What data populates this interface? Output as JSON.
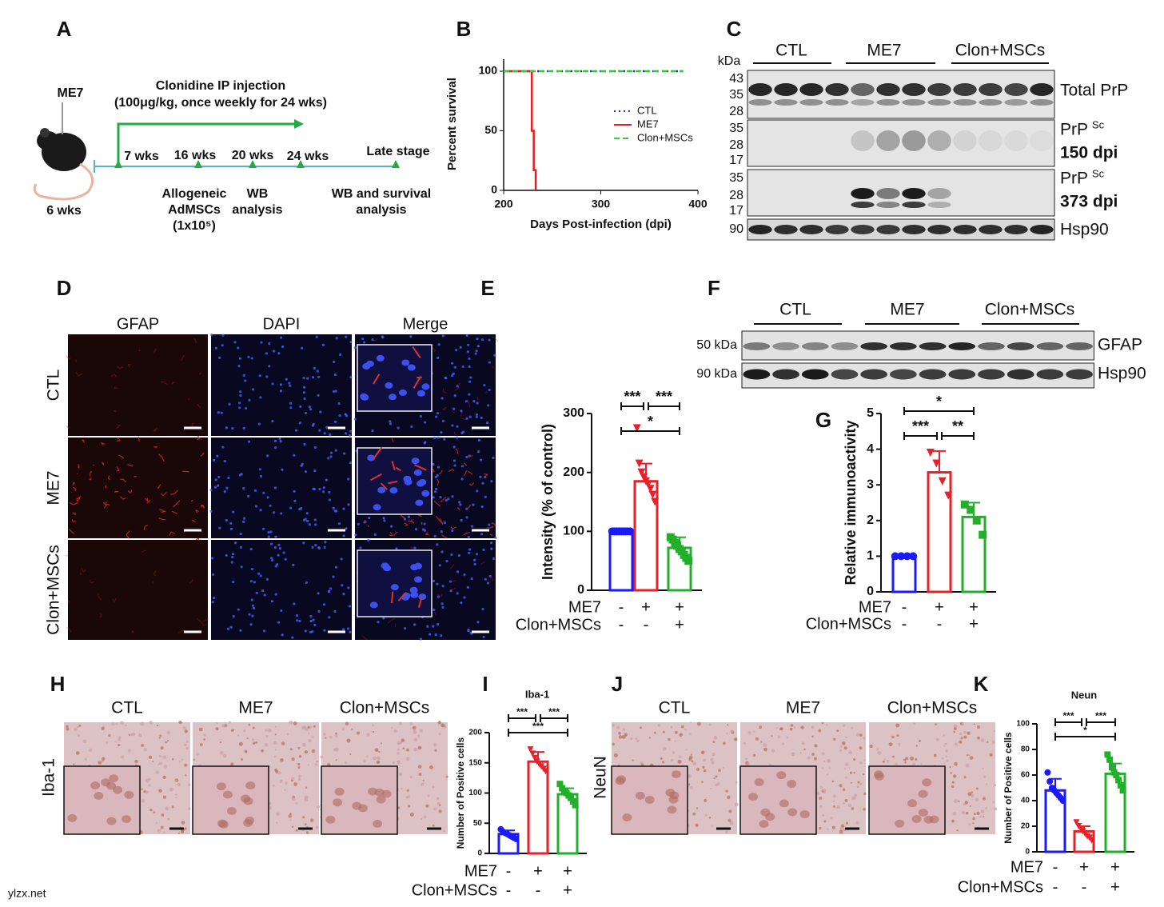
{
  "panels": [
    "A",
    "B",
    "C",
    "D",
    "E",
    "F",
    "G",
    "H",
    "I",
    "J",
    "K"
  ],
  "timeline": {
    "mouse_label": "ME7",
    "start": "6 wks",
    "treatment": "Clonidine IP injection",
    "dose": "(100μg/kg, once weekly for 24 wks)",
    "timepoints": [
      "7 wks",
      "16 wks",
      "20 wks",
      "24 wks",
      "Late stage"
    ],
    "events": [
      [
        "Allogeneic",
        "AdMSCs",
        "(1x10⁵)"
      ],
      [
        "WB",
        "analysis"
      ],
      [
        "WB and survival",
        "analysis"
      ]
    ]
  },
  "blot_c": {
    "unit": "kDa",
    "groups": [
      "CTL",
      "ME7",
      "Clon+MSCs"
    ],
    "rows": [
      {
        "markers": [
          "43",
          "35",
          "28"
        ],
        "label": "Total PrP"
      },
      {
        "markers": [
          "35",
          "28",
          "17"
        ],
        "label": "PrP",
        "label_sup": "Sc",
        "note": "150 dpi"
      },
      {
        "markers": [
          "35",
          "28",
          "17"
        ],
        "label": "PrP",
        "label_sup": "Sc",
        "note": "373 dpi"
      },
      {
        "markers": [
          "90"
        ],
        "label": "Hsp90"
      }
    ]
  },
  "blot_f": {
    "groups": [
      "CTL",
      "ME7",
      "Clon+MSCs"
    ],
    "rows": [
      {
        "markers": [
          "50 kDa"
        ],
        "label": "GFAP"
      },
      {
        "markers": [
          "90 kDa"
        ],
        "label": "Hsp90"
      }
    ]
  },
  "stain_d": {
    "columns": [
      "GFAP",
      "DAPI",
      "Merge"
    ],
    "rows": [
      "CTL",
      "ME7",
      "Clon+MSCs"
    ]
  },
  "stain_h": {
    "columns": [
      "CTL",
      "ME7",
      "Clon+MSCs"
    ],
    "row": "Iba-1"
  },
  "stain_j": {
    "columns": [
      "CTL",
      "ME7",
      "Clon+MSCs"
    ],
    "row": "NeuN"
  },
  "watermark": "ylzx.net",
  "chart_data": [
    {
      "type": "line",
      "xlabel": "Days Post-infection (dpi)",
      "ylabel": "Percent survival",
      "xlim": [
        200,
        400
      ],
      "xticks": [
        200,
        300,
        400
      ],
      "ylim": [
        0,
        100
      ],
      "yticks": [
        0,
        50,
        100
      ],
      "legend": "right",
      "series": [
        {
          "name": "CTL",
          "color": "#2a2ae0",
          "dash": "dotted",
          "x": [
            200,
            385
          ],
          "values": [
            100,
            100
          ]
        },
        {
          "name": "ME7",
          "color": "#e02020",
          "dash": "solid",
          "x": [
            200,
            229,
            229,
            231,
            231,
            233,
            233
          ],
          "values": [
            100,
            100,
            50,
            50,
            17,
            17,
            0
          ]
        },
        {
          "name": "Clon+MSCs",
          "color": "#33cc33",
          "dash": "dashed",
          "x": [
            200,
            385
          ],
          "values": [
            100,
            100
          ]
        }
      ]
    },
    {
      "type": "bar",
      "ylabel": "Intensity (% of control)",
      "ylim": [
        0,
        300
      ],
      "yticks": [
        0,
        100,
        200,
        300
      ],
      "colors": [
        "#1a1aff",
        "#e8202a",
        "#22b02a"
      ],
      "markers": [
        "circle",
        "triangle",
        "square"
      ],
      "values": [
        100,
        185,
        72
      ],
      "errors": [
        2,
        30,
        18
      ],
      "points": [
        [
          100,
          100,
          100,
          100,
          100,
          100,
          100,
          100,
          100
        ],
        [
          275,
          215,
          200,
          192,
          185,
          180,
          172,
          162,
          150
        ],
        [
          90,
          86,
          80,
          76,
          70,
          66,
          60,
          55,
          50
        ]
      ],
      "conditions": [
        {
          "name": "ME7",
          "signs": [
            "-",
            "+",
            "+"
          ]
        },
        {
          "name": "Clon+MSCs",
          "signs": [
            "-",
            "-",
            "+"
          ]
        }
      ],
      "significance": [
        {
          "from": 0,
          "to": 1,
          "label": "***"
        },
        {
          "from": 1,
          "to": 2,
          "label": "***"
        },
        {
          "from": 0,
          "to": 2,
          "label": "*"
        }
      ]
    },
    {
      "type": "bar",
      "ylabel": "Relative immunoactivity",
      "ylim": [
        0,
        5
      ],
      "yticks": [
        0,
        1,
        2,
        3,
        4,
        5
      ],
      "colors": [
        "#1a1aff",
        "#e8202a",
        "#22b02a"
      ],
      "markers": [
        "circle",
        "triangle",
        "square"
      ],
      "values": [
        1,
        3.35,
        2.1
      ],
      "errors": [
        0.02,
        0.6,
        0.4
      ],
      "points": [
        [
          1,
          1,
          1,
          1
        ],
        [
          3.9,
          3.6,
          3.1,
          2.7
        ],
        [
          2.45,
          2.3,
          2.0,
          1.6
        ]
      ],
      "conditions": [
        {
          "name": "ME7",
          "signs": [
            "-",
            "+",
            "+"
          ]
        },
        {
          "name": "Clon+MSCs",
          "signs": [
            "-",
            "-",
            "+"
          ]
        }
      ],
      "significance": [
        {
          "from": 0,
          "to": 1,
          "label": "***"
        },
        {
          "from": 1,
          "to": 2,
          "label": "**"
        },
        {
          "from": 0,
          "to": 2,
          "label": "*"
        }
      ]
    },
    {
      "type": "bar",
      "title": "Iba-1",
      "ylabel": "Number of Positive cells",
      "ylim": [
        0,
        200
      ],
      "yticks": [
        0,
        50,
        100,
        150,
        200
      ],
      "colors": [
        "#1a1aff",
        "#e8202a",
        "#22b02a"
      ],
      "markers": [
        "circle",
        "triangle",
        "square"
      ],
      "values": [
        32,
        152,
        98
      ],
      "errors": [
        6,
        16,
        10
      ],
      "points": [
        [
          40,
          36,
          34,
          32,
          30,
          28,
          26,
          24
        ],
        [
          172,
          165,
          158,
          152,
          148,
          144,
          140,
          136
        ],
        [
          115,
          108,
          104,
          100,
          96,
          92,
          86,
          80
        ]
      ],
      "conditions": [
        {
          "name": "ME7",
          "signs": [
            "-",
            "+",
            "+"
          ]
        },
        {
          "name": "Clon+MSCs",
          "signs": [
            "-",
            "-",
            "+"
          ]
        }
      ],
      "significance": [
        {
          "from": 0,
          "to": 1,
          "label": "***"
        },
        {
          "from": 1,
          "to": 2,
          "label": "***"
        },
        {
          "from": 0,
          "to": 2,
          "label": "***"
        }
      ]
    },
    {
      "type": "bar",
      "title": "Neun",
      "ylabel": "Number of Positive cells",
      "ylim": [
        0,
        100
      ],
      "yticks": [
        0,
        20,
        40,
        60,
        80,
        100
      ],
      "colors": [
        "#1a1aff",
        "#e8202a",
        "#22b02a"
      ],
      "markers": [
        "circle",
        "triangle",
        "square"
      ],
      "values": [
        48,
        16,
        61
      ],
      "errors": [
        9,
        4,
        8
      ],
      "points": [
        [
          62,
          55,
          50,
          48,
          46,
          44,
          42,
          40
        ],
        [
          23,
          20,
          18,
          16,
          14,
          12,
          11,
          9
        ],
        [
          76,
          72,
          66,
          62,
          60,
          56,
          52,
          48
        ]
      ],
      "conditions": [
        {
          "name": "ME7",
          "signs": [
            "-",
            "+",
            "+"
          ]
        },
        {
          "name": "Clon+MSCs",
          "signs": [
            "-",
            "-",
            "+"
          ]
        }
      ],
      "significance": [
        {
          "from": 0,
          "to": 1,
          "label": "***"
        },
        {
          "from": 1,
          "to": 2,
          "label": "***"
        },
        {
          "from": 0,
          "to": 2,
          "label": "*"
        }
      ]
    }
  ]
}
